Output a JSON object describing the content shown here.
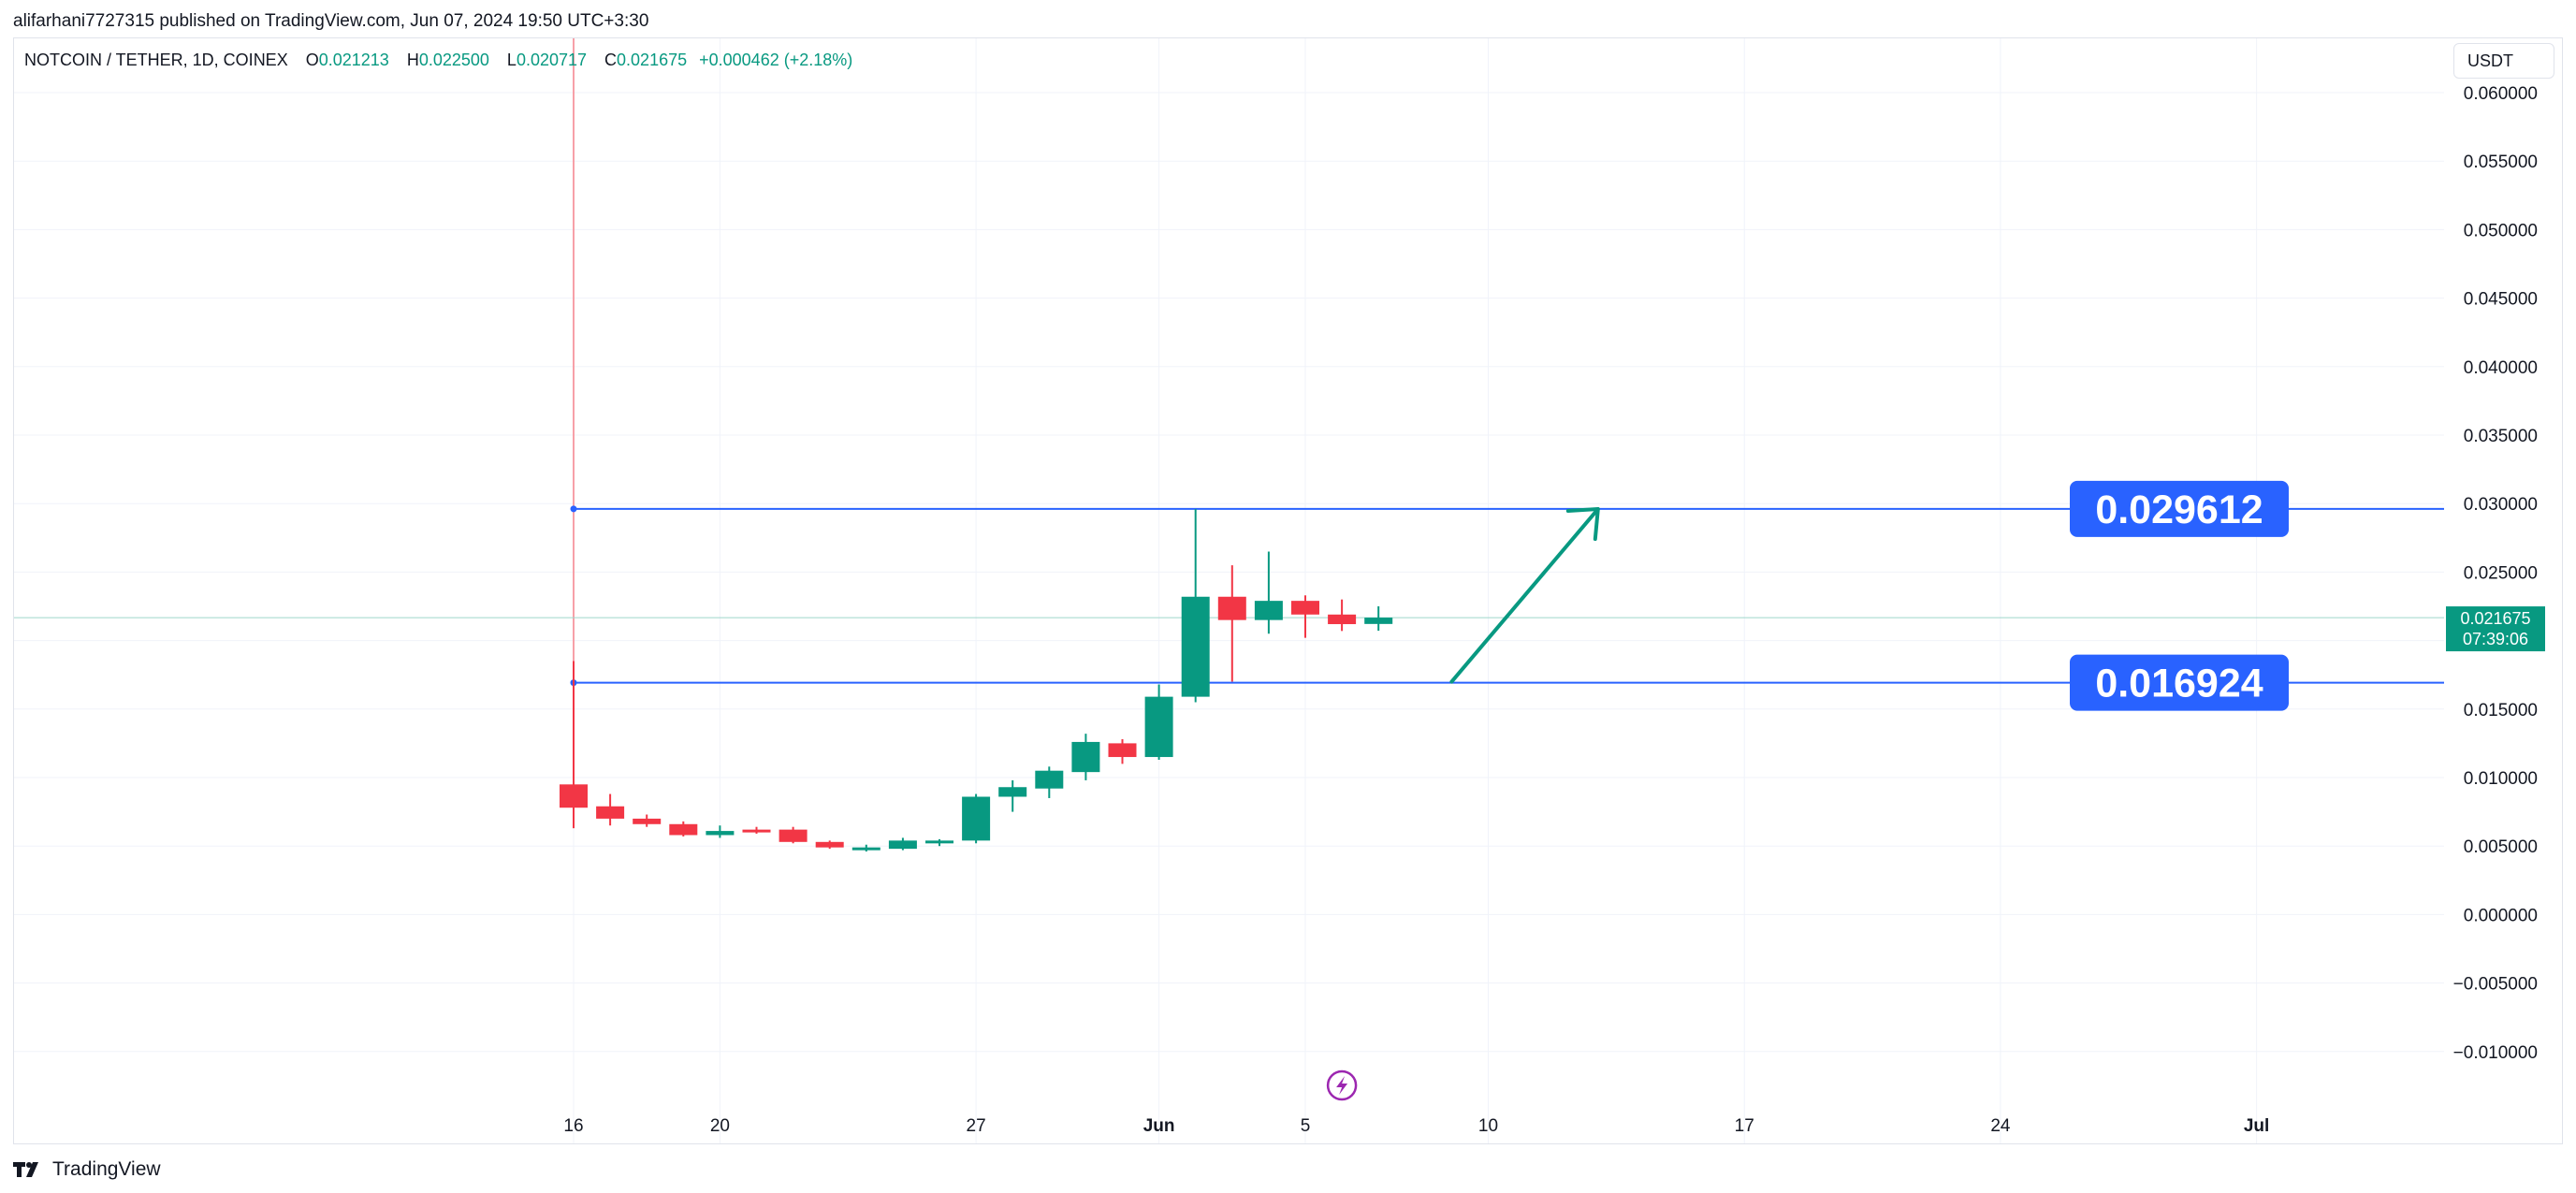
{
  "header": {
    "published_line": "alifarhani7727315 published on TradingView.com, Jun 07, 2024 19:50 UTC+3:30"
  },
  "legend": {
    "symbol": "NOTCOIN / TETHER, 1D, COINEX",
    "open_key": "O",
    "open_value": "0.021213",
    "high_key": "H",
    "high_value": "0.022500",
    "low_key": "L",
    "low_value": "0.020717",
    "close_key": "C",
    "close_value": "0.021675",
    "change": "+0.000462 (+2.18%)"
  },
  "unit_button": {
    "label": "USDT"
  },
  "footer": {
    "brand": "TradingView",
    "logo_icon": "tradingview-logo-icon"
  },
  "colors": {
    "up": "#089981",
    "down": "#f23645",
    "line": "#2962ff",
    "label_bg": "#2962ff",
    "price_tag": "#089981"
  },
  "chart_data": {
    "type": "candlestick",
    "y_axis": {
      "ticks": [
        0.06,
        0.055,
        0.05,
        0.045,
        0.04,
        0.035,
        0.03,
        0.025,
        0.02,
        0.015,
        0.01,
        0.005,
        0.0,
        -0.005,
        -0.01
      ],
      "tick_labels": [
        "0.060000",
        "0.055000",
        "0.050000",
        "0.045000",
        "0.040000",
        "0.035000",
        "0.030000",
        "0.025000",
        "0.020000",
        "0.015000",
        "0.010000",
        "0.005000",
        "0.000000",
        "−0.005000",
        "−0.010000"
      ]
    },
    "x_axis": {
      "ticks": [
        {
          "label": "16",
          "date": "2024-05-16",
          "bold": false
        },
        {
          "label": "20",
          "date": "2024-05-20",
          "bold": false
        },
        {
          "label": "27",
          "date": "2024-05-27",
          "bold": false
        },
        {
          "label": "Jun",
          "date": "2024-06-01",
          "bold": true
        },
        {
          "label": "5",
          "date": "2024-06-05",
          "bold": false
        },
        {
          "label": "10",
          "date": "2024-06-10",
          "bold": false
        },
        {
          "label": "17",
          "date": "2024-06-17",
          "bold": false
        },
        {
          "label": "24",
          "date": "2024-06-24",
          "bold": false
        },
        {
          "label": "Jul",
          "date": "2024-07-01",
          "bold": true
        }
      ]
    },
    "candles": [
      {
        "date": "2024-05-16",
        "o": 0.0095,
        "h": 0.0185,
        "l": 0.0063,
        "c": 0.0078
      },
      {
        "date": "2024-05-17",
        "o": 0.0079,
        "h": 0.0088,
        "l": 0.0065,
        "c": 0.007
      },
      {
        "date": "2024-05-18",
        "o": 0.007,
        "h": 0.0073,
        "l": 0.0064,
        "c": 0.0066
      },
      {
        "date": "2024-05-19",
        "o": 0.0066,
        "h": 0.0068,
        "l": 0.0057,
        "c": 0.0058
      },
      {
        "date": "2024-05-20",
        "o": 0.0058,
        "h": 0.0065,
        "l": 0.0056,
        "c": 0.0061
      },
      {
        "date": "2024-05-21",
        "o": 0.0062,
        "h": 0.0064,
        "l": 0.0059,
        "c": 0.0061
      },
      {
        "date": "2024-05-22",
        "o": 0.0062,
        "h": 0.0064,
        "l": 0.0052,
        "c": 0.0053
      },
      {
        "date": "2024-05-23",
        "o": 0.0053,
        "h": 0.0054,
        "l": 0.0048,
        "c": 0.0049
      },
      {
        "date": "2024-05-24",
        "o": 0.0049,
        "h": 0.0051,
        "l": 0.0046,
        "c": 0.0049
      },
      {
        "date": "2024-05-25",
        "o": 0.0048,
        "h": 0.0056,
        "l": 0.0047,
        "c": 0.0054
      },
      {
        "date": "2024-05-26",
        "o": 0.0053,
        "h": 0.0055,
        "l": 0.005,
        "c": 0.0054
      },
      {
        "date": "2024-05-27",
        "o": 0.0054,
        "h": 0.0088,
        "l": 0.0052,
        "c": 0.0086
      },
      {
        "date": "2024-05-28",
        "o": 0.0086,
        "h": 0.0098,
        "l": 0.0075,
        "c": 0.0093
      },
      {
        "date": "2024-05-29",
        "o": 0.0092,
        "h": 0.0108,
        "l": 0.0085,
        "c": 0.0105
      },
      {
        "date": "2024-05-30",
        "o": 0.0104,
        "h": 0.0132,
        "l": 0.0098,
        "c": 0.0126
      },
      {
        "date": "2024-05-31",
        "o": 0.0125,
        "h": 0.0128,
        "l": 0.011,
        "c": 0.0115
      },
      {
        "date": "2024-06-01",
        "o": 0.0115,
        "h": 0.0168,
        "l": 0.0113,
        "c": 0.0159
      },
      {
        "date": "2024-06-02",
        "o": 0.0159,
        "h": 0.0296,
        "l": 0.0155,
        "c": 0.0232
      },
      {
        "date": "2024-06-03",
        "o": 0.0232,
        "h": 0.0255,
        "l": 0.017,
        "c": 0.0215
      },
      {
        "date": "2024-06-04",
        "o": 0.0215,
        "h": 0.0265,
        "l": 0.0205,
        "c": 0.0229
      },
      {
        "date": "2024-06-05",
        "o": 0.0229,
        "h": 0.0233,
        "l": 0.0202,
        "c": 0.0219
      },
      {
        "date": "2024-06-06",
        "o": 0.0219,
        "h": 0.023,
        "l": 0.0207,
        "c": 0.0212
      },
      {
        "date": "2024-06-07",
        "o": 0.021213,
        "h": 0.0225,
        "l": 0.020717,
        "c": 0.021675
      }
    ],
    "horizontal_levels": [
      {
        "value": 0.029612,
        "label": "0.029612",
        "start_date": "2024-05-16"
      },
      {
        "value": 0.016924,
        "label": "0.016924",
        "start_date": "2024-05-16"
      }
    ],
    "vertical_marker": {
      "date": "2024-05-16"
    },
    "current_price": {
      "value": 0.021675,
      "label": "0.021675",
      "countdown": "07:39:06"
    },
    "arrow": {
      "from": {
        "date": "2024-06-09",
        "value": 0.017
      },
      "to": {
        "date": "2024-06-13",
        "value": 0.0296
      }
    },
    "event_icon": {
      "date": "2024-06-06",
      "name": "lightning-event-icon"
    },
    "grid": true
  }
}
